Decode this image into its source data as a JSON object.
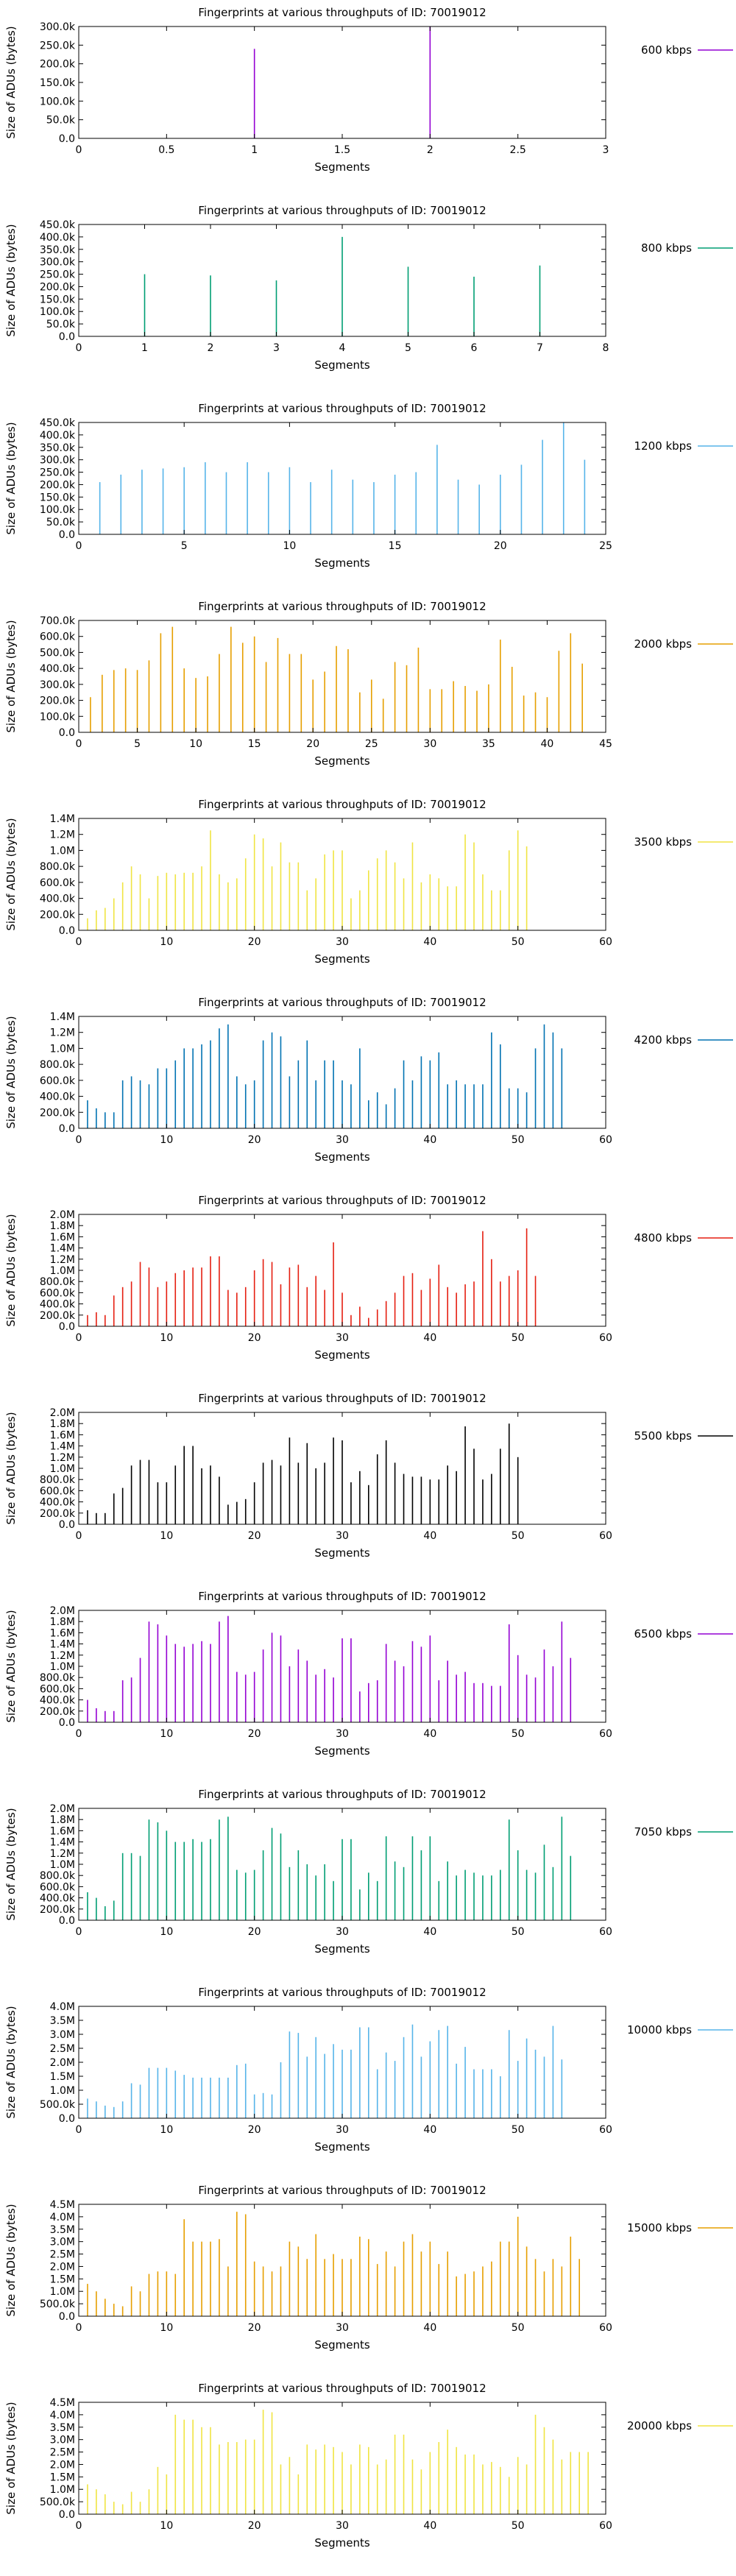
{
  "page": {
    "background": "#ffffff"
  },
  "chart_data": [
    {
      "type": "bar",
      "title": "Fingerprints at various throughputs of ID: 70019012",
      "xlabel": "Segments",
      "ylabel": "Size of ADUs (bytes)",
      "series_name": "600 kbps",
      "color": "#9400d3",
      "xlim": [
        0,
        3
      ],
      "ylim": [
        0,
        300000
      ],
      "x_ticks": [
        "0",
        "0.5",
        "1",
        "1.5",
        "2",
        "2.5",
        "3"
      ],
      "y_ticks": [
        "0.0",
        "50.0k",
        "100.0k",
        "150.0k",
        "200.0k",
        "250.0k",
        "300.0k"
      ],
      "values": [
        240000,
        300000
      ]
    },
    {
      "type": "bar",
      "title": "Fingerprints at various throughputs of ID: 70019012",
      "xlabel": "Segments",
      "ylabel": "Size of ADUs (bytes)",
      "series_name": "800 kbps",
      "color": "#009e73",
      "xlim": [
        0,
        8
      ],
      "ylim": [
        0,
        450000
      ],
      "x_ticks": [
        "0",
        "1",
        "2",
        "3",
        "4",
        "5",
        "6",
        "7",
        "8"
      ],
      "y_ticks": [
        "0.0",
        "50.0k",
        "100.0k",
        "150.0k",
        "200.0k",
        "250.0k",
        "300.0k",
        "350.0k",
        "400.0k",
        "450.0k"
      ],
      "values": [
        250000,
        245000,
        225000,
        400000,
        280000,
        240000,
        285000
      ]
    },
    {
      "type": "bar",
      "title": "Fingerprints at various throughputs of ID: 70019012",
      "xlabel": "Segments",
      "ylabel": "Size of ADUs (bytes)",
      "series_name": "1200 kbps",
      "color": "#56b4e9",
      "xlim": [
        0,
        25
      ],
      "ylim": [
        0,
        450000
      ],
      "x_ticks": [
        "0",
        "5",
        "10",
        "15",
        "20",
        "25"
      ],
      "y_ticks": [
        "0.0",
        "50.0k",
        "100.0k",
        "150.0k",
        "200.0k",
        "250.0k",
        "300.0k",
        "350.0k",
        "400.0k",
        "450.0k"
      ],
      "values": [
        210000,
        240000,
        260000,
        265000,
        270000,
        290000,
        250000,
        290000,
        250000,
        270000,
        210000,
        260000,
        220000,
        210000,
        240000,
        250000,
        360000,
        220000,
        200000,
        240000,
        280000,
        380000,
        450000,
        300000
      ]
    },
    {
      "type": "bar",
      "title": "Fingerprints at various throughputs of ID: 70019012",
      "xlabel": "Segments",
      "ylabel": "Size of ADUs (bytes)",
      "series_name": "2000 kbps",
      "color": "#e69f00",
      "xlim": [
        0,
        45
      ],
      "ylim": [
        0,
        700000
      ],
      "x_ticks": [
        "0",
        "5",
        "10",
        "15",
        "20",
        "25",
        "30",
        "35",
        "40",
        "45"
      ],
      "y_ticks": [
        "0.0",
        "100.0k",
        "200.0k",
        "300.0k",
        "400.0k",
        "500.0k",
        "600.0k",
        "700.0k"
      ],
      "values": [
        220000,
        360000,
        390000,
        400000,
        390000,
        450000,
        620000,
        660000,
        400000,
        340000,
        350000,
        490000,
        660000,
        560000,
        600000,
        440000,
        590000,
        490000,
        490000,
        330000,
        380000,
        540000,
        520000,
        250000,
        330000,
        210000,
        440000,
        420000,
        530000,
        270000,
        270000,
        320000,
        290000,
        260000,
        300000,
        580000,
        410000,
        230000,
        250000,
        220000,
        510000,
        620000,
        430000
      ]
    },
    {
      "type": "bar",
      "title": "Fingerprints at various throughputs of ID: 70019012",
      "xlabel": "Segments",
      "ylabel": "Size of ADUs (bytes)",
      "series_name": "3500 kbps",
      "color": "#f0e442",
      "xlim": [
        0,
        60
      ],
      "ylim": [
        0,
        1400000
      ],
      "x_ticks": [
        "0",
        "10",
        "20",
        "30",
        "40",
        "50",
        "60"
      ],
      "y_ticks": [
        "0.0",
        "200.0k",
        "400.0k",
        "600.0k",
        "800.0k",
        "1.0M",
        "1.2M",
        "1.4M"
      ],
      "values": [
        150000,
        250000,
        280000,
        400000,
        600000,
        800000,
        700000,
        400000,
        680000,
        720000,
        700000,
        720000,
        720000,
        800000,
        1250000,
        700000,
        600000,
        650000,
        900000,
        1200000,
        1150000,
        800000,
        1100000,
        850000,
        850000,
        500000,
        650000,
        950000,
        1000000,
        1000000,
        400000,
        500000,
        750000,
        900000,
        1000000,
        850000,
        650000,
        1100000,
        600000,
        700000,
        650000,
        550000,
        550000,
        1200000,
        1100000,
        700000,
        500000,
        500000,
        1000000,
        1250000,
        1050000
      ]
    },
    {
      "type": "bar",
      "title": "Fingerprints at various throughputs of ID: 70019012",
      "xlabel": "Segments",
      "ylabel": "Size of ADUs (bytes)",
      "series_name": "4200 kbps",
      "color": "#0072b2",
      "xlim": [
        0,
        60
      ],
      "ylim": [
        0,
        1400000
      ],
      "x_ticks": [
        "0",
        "10",
        "20",
        "30",
        "40",
        "50",
        "60"
      ],
      "y_ticks": [
        "0.0",
        "200.0k",
        "400.0k",
        "600.0k",
        "800.0k",
        "1.0M",
        "1.2M",
        "1.4M"
      ],
      "values": [
        350000,
        250000,
        200000,
        200000,
        600000,
        650000,
        600000,
        550000,
        750000,
        750000,
        850000,
        1000000,
        1000000,
        1050000,
        1100000,
        1250000,
        1300000,
        650000,
        550000,
        600000,
        1100000,
        1200000,
        1150000,
        650000,
        850000,
        1100000,
        600000,
        850000,
        850000,
        600000,
        550000,
        1000000,
        350000,
        450000,
        300000,
        500000,
        850000,
        600000,
        900000,
        850000,
        950000,
        550000,
        600000,
        550000,
        550000,
        550000,
        1200000,
        1050000,
        500000,
        500000,
        450000,
        1000000,
        1300000,
        1200000,
        1000000
      ]
    },
    {
      "type": "bar",
      "title": "Fingerprints at various throughputs of ID: 70019012",
      "xlabel": "Segments",
      "ylabel": "Size of ADUs (bytes)",
      "series_name": "4800 kbps",
      "color": "#e51e10",
      "xlim": [
        0,
        60
      ],
      "ylim": [
        0,
        2000000
      ],
      "x_ticks": [
        "0",
        "10",
        "20",
        "30",
        "40",
        "50",
        "60"
      ],
      "y_ticks": [
        "0.0",
        "200.0k",
        "400.0k",
        "600.0k",
        "800.0k",
        "1.0M",
        "1.2M",
        "1.4M",
        "1.6M",
        "1.8M",
        "2.0M"
      ],
      "values": [
        200000,
        250000,
        200000,
        550000,
        700000,
        800000,
        1150000,
        1050000,
        700000,
        800000,
        950000,
        1000000,
        1050000,
        1050000,
        1250000,
        1250000,
        650000,
        600000,
        700000,
        1000000,
        1200000,
        1150000,
        750000,
        1050000,
        1100000,
        700000,
        900000,
        650000,
        1500000,
        600000,
        200000,
        350000,
        150000,
        300000,
        450000,
        600000,
        900000,
        950000,
        650000,
        850000,
        1100000,
        700000,
        600000,
        750000,
        800000,
        1700000,
        1200000,
        800000,
        900000,
        1000000,
        1750000,
        900000
      ]
    },
    {
      "type": "bar",
      "title": "Fingerprints at various throughputs of ID: 70019012",
      "xlabel": "Segments",
      "ylabel": "Size of ADUs (bytes)",
      "series_name": "5500 kbps",
      "color": "#000000",
      "xlim": [
        0,
        60
      ],
      "ylim": [
        0,
        2000000
      ],
      "x_ticks": [
        "0",
        "10",
        "20",
        "30",
        "40",
        "50",
        "60"
      ],
      "y_ticks": [
        "0.0",
        "200.0k",
        "400.0k",
        "600.0k",
        "800.0k",
        "1.0M",
        "1.2M",
        "1.4M",
        "1.6M",
        "1.8M",
        "2.0M"
      ],
      "values": [
        250000,
        200000,
        200000,
        550000,
        650000,
        1050000,
        1150000,
        1150000,
        750000,
        750000,
        1050000,
        1400000,
        1400000,
        1000000,
        1050000,
        850000,
        350000,
        400000,
        450000,
        750000,
        1100000,
        1150000,
        1050000,
        1550000,
        1100000,
        1450000,
        1000000,
        1100000,
        1550000,
        1500000,
        750000,
        950000,
        700000,
        1250000,
        1500000,
        1100000,
        900000,
        850000,
        850000,
        800000,
        800000,
        1050000,
        950000,
        1750000,
        1350000,
        800000,
        900000,
        1350000,
        1800000,
        1200000
      ]
    },
    {
      "type": "bar",
      "title": "Fingerprints at various throughputs of ID: 70019012",
      "xlabel": "Segments",
      "ylabel": "Size of ADUs (bytes)",
      "series_name": "6500 kbps",
      "color": "#9400d3",
      "xlim": [
        0,
        60
      ],
      "ylim": [
        0,
        2000000
      ],
      "x_ticks": [
        "0",
        "10",
        "20",
        "30",
        "40",
        "50",
        "60"
      ],
      "y_ticks": [
        "0.0",
        "200.0k",
        "400.0k",
        "600.0k",
        "800.0k",
        "1.0M",
        "1.2M",
        "1.4M",
        "1.6M",
        "1.8M",
        "2.0M"
      ],
      "values": [
        400000,
        250000,
        200000,
        200000,
        750000,
        800000,
        1150000,
        1800000,
        1750000,
        1550000,
        1400000,
        1350000,
        1400000,
        1450000,
        1400000,
        1800000,
        1900000,
        900000,
        850000,
        900000,
        1300000,
        1600000,
        1550000,
        1000000,
        1300000,
        1100000,
        850000,
        950000,
        800000,
        1500000,
        1500000,
        550000,
        700000,
        750000,
        1400000,
        1100000,
        1000000,
        1450000,
        1350000,
        1550000,
        750000,
        1100000,
        850000,
        900000,
        700000,
        700000,
        650000,
        650000,
        1750000,
        1200000,
        850000,
        800000,
        1300000,
        1000000,
        1800000,
        1150000
      ]
    },
    {
      "type": "bar",
      "title": "Fingerprints at various throughputs of ID: 70019012",
      "xlabel": "Segments",
      "ylabel": "Size of ADUs (bytes)",
      "series_name": "7050 kbps",
      "color": "#009e73",
      "xlim": [
        0,
        60
      ],
      "ylim": [
        0,
        2000000
      ],
      "x_ticks": [
        "0",
        "10",
        "20",
        "30",
        "40",
        "50",
        "60"
      ],
      "y_ticks": [
        "0.0",
        "200.0k",
        "400.0k",
        "600.0k",
        "800.0k",
        "1.0M",
        "1.2M",
        "1.4M",
        "1.6M",
        "1.8M",
        "2.0M"
      ],
      "values": [
        500000,
        400000,
        250000,
        350000,
        1200000,
        1200000,
        1150000,
        1800000,
        1750000,
        1600000,
        1400000,
        1400000,
        1450000,
        1400000,
        1450000,
        1800000,
        1850000,
        900000,
        850000,
        900000,
        1250000,
        1650000,
        1550000,
        950000,
        1250000,
        1000000,
        800000,
        1000000,
        700000,
        1450000,
        1450000,
        550000,
        850000,
        700000,
        1500000,
        1050000,
        950000,
        1500000,
        1250000,
        1500000,
        700000,
        1050000,
        800000,
        900000,
        850000,
        800000,
        800000,
        900000,
        1800000,
        1250000,
        900000,
        850000,
        1350000,
        950000,
        1850000,
        1150000
      ]
    },
    {
      "type": "bar",
      "title": "Fingerprints at various throughputs of ID: 70019012",
      "xlabel": "Segments",
      "ylabel": "Size of ADUs (bytes)",
      "series_name": "10000 kbps",
      "color": "#56b4e9",
      "xlim": [
        0,
        60
      ],
      "ylim": [
        0,
        4000000
      ],
      "x_ticks": [
        "0",
        "10",
        "20",
        "30",
        "40",
        "50",
        "60"
      ],
      "y_ticks": [
        "0.0",
        "500.0k",
        "1.0M",
        "1.5M",
        "2.0M",
        "2.5M",
        "3.0M",
        "3.5M",
        "4.0M"
      ],
      "values": [
        700000,
        600000,
        450000,
        400000,
        600000,
        1250000,
        1200000,
        1800000,
        1800000,
        1800000,
        1700000,
        1550000,
        1450000,
        1450000,
        1450000,
        1450000,
        1450000,
        1900000,
        1950000,
        850000,
        900000,
        850000,
        2000000,
        3100000,
        3050000,
        2200000,
        2900000,
        2300000,
        2650000,
        2450000,
        2450000,
        3250000,
        3250000,
        1750000,
        2350000,
        2050000,
        2900000,
        3350000,
        2200000,
        2750000,
        3150000,
        3300000,
        1950000,
        2550000,
        1750000,
        1750000,
        1750000,
        1500000,
        3150000,
        2050000,
        2850000,
        2450000,
        2200000,
        3300000,
        2100000
      ]
    },
    {
      "type": "bar",
      "title": "Fingerprints at various throughputs of ID: 70019012",
      "xlabel": "Segments",
      "ylabel": "Size of ADUs (bytes)",
      "series_name": "15000 kbps",
      "color": "#e69f00",
      "xlim": [
        0,
        60
      ],
      "ylim": [
        0,
        4500000
      ],
      "x_ticks": [
        "0",
        "10",
        "20",
        "30",
        "40",
        "50",
        "60"
      ],
      "y_ticks": [
        "0.0",
        "500.0k",
        "1.0M",
        "1.5M",
        "2.0M",
        "2.5M",
        "3.0M",
        "3.5M",
        "4.0M",
        "4.5M"
      ],
      "values": [
        1300000,
        1000000,
        700000,
        500000,
        400000,
        1200000,
        1000000,
        1700000,
        1800000,
        1800000,
        1700000,
        3900000,
        3000000,
        3000000,
        3000000,
        3100000,
        2000000,
        4200000,
        4100000,
        2200000,
        2000000,
        1800000,
        2000000,
        3000000,
        2800000,
        2300000,
        3300000,
        2300000,
        2500000,
        2300000,
        2300000,
        3200000,
        3100000,
        2100000,
        2600000,
        2000000,
        3000000,
        3300000,
        2600000,
        3000000,
        2100000,
        2600000,
        1600000,
        1700000,
        1800000,
        2000000,
        2200000,
        3000000,
        3000000,
        4000000,
        2800000,
        2300000,
        1800000,
        2300000,
        2000000,
        3200000,
        2300000
      ]
    },
    {
      "type": "bar",
      "title": "Fingerprints at various throughputs of ID: 70019012",
      "xlabel": "Segments",
      "ylabel": "Size of ADUs (bytes)",
      "series_name": "20000 kbps",
      "color": "#f0e442",
      "xlim": [
        0,
        60
      ],
      "ylim": [
        0,
        4500000
      ],
      "x_ticks": [
        "0",
        "10",
        "20",
        "30",
        "40",
        "50",
        "60"
      ],
      "y_ticks": [
        "0.0",
        "500.0k",
        "1.0M",
        "1.5M",
        "2.0M",
        "2.5M",
        "3.0M",
        "3.5M",
        "4.0M",
        "4.5M"
      ],
      "values": [
        1200000,
        1000000,
        800000,
        500000,
        400000,
        900000,
        500000,
        1000000,
        1900000,
        1600000,
        4000000,
        3800000,
        3800000,
        3500000,
        3500000,
        2800000,
        2900000,
        2900000,
        3000000,
        3000000,
        4200000,
        4100000,
        2000000,
        2300000,
        1600000,
        2800000,
        2600000,
        2800000,
        2700000,
        2500000,
        2000000,
        2800000,
        2700000,
        2000000,
        2200000,
        3200000,
        3200000,
        2200000,
        1800000,
        2500000,
        2900000,
        3400000,
        2700000,
        2400000,
        2400000,
        2000000,
        2100000,
        1900000,
        1500000,
        2300000,
        2000000,
        4000000,
        3500000,
        3000000,
        2200000,
        2500000,
        2500000,
        2500000
      ]
    }
  ]
}
